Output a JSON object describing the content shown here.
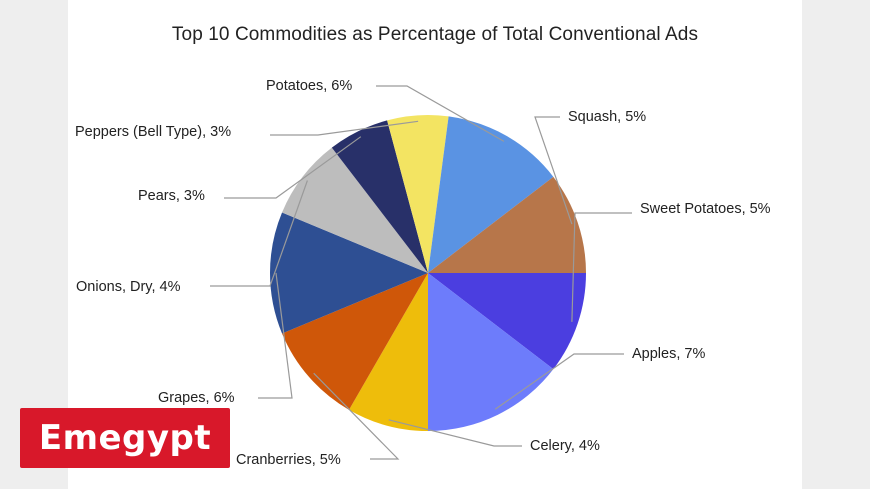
{
  "chart_data": {
    "type": "pie",
    "title": "Top 10 Commodities as Percentage of Total Conventional Ads",
    "slices": [
      {
        "label": "Sweet Potatoes, 5%",
        "value": 5,
        "color": "#4b3ee0"
      },
      {
        "label": "Apples, 7%",
        "value": 7,
        "color": "#6d7cfb"
      },
      {
        "label": "Celery, 4%",
        "value": 4,
        "color": "#eebd0b"
      },
      {
        "label": "Cranberries, 5%",
        "value": 5,
        "color": "#cf5709"
      },
      {
        "label": "Grapes, 6%",
        "value": 6,
        "color": "#2e4f93"
      },
      {
        "label": "Onions, Dry, 4%",
        "value": 4,
        "color": "#bdbdbd"
      },
      {
        "label": "Pears, 3%",
        "value": 3,
        "color": "#283069"
      },
      {
        "label": "Peppers (Bell Type), 3%",
        "value": 3,
        "color": "#f3e462"
      },
      {
        "label": "Potatoes, 6%",
        "value": 6,
        "color": "#5a93e3"
      },
      {
        "label": "Squash, 5%",
        "value": 5,
        "color": "#b7764a"
      }
    ],
    "start": "3 o'clock",
    "direction": "clockwise",
    "legend": "none"
  },
  "watermark": {
    "text": "Emegypt",
    "color": "#d8182a"
  }
}
